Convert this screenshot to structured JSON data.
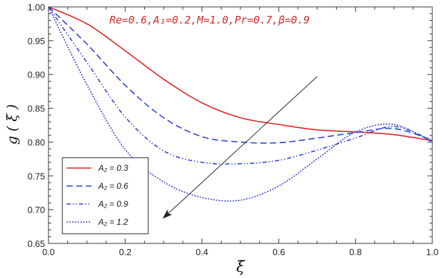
{
  "chart_data": {
    "type": "line",
    "xlabel": "ξ",
    "ylabel": "g ( ξ )",
    "xlim": [
      0,
      1
    ],
    "ylim": [
      0.65,
      1.0
    ],
    "x_ticks": [
      "0.0",
      "0.2",
      "0.4",
      "0.6",
      "0.8",
      "1.0"
    ],
    "y_ticks": [
      "0.65",
      "0.70",
      "0.75",
      "0.80",
      "0.85",
      "0.90",
      "0.95",
      "1.00"
    ],
    "annotation": "Re=0.6,A₁=0.2,M=1.0,Pr=0.7,β=0.9",
    "annotation_color": "#d42a2a",
    "legend_position": "bottom-left",
    "arrow": {
      "from": [
        0.7,
        0.897
      ],
      "to": [
        0.3,
        0.688
      ]
    },
    "series": [
      {
        "name": "A₂ = 0.3",
        "color": "#e02020",
        "dash": "solid",
        "x": [
          0,
          0.1,
          0.2,
          0.3,
          0.4,
          0.5,
          0.6,
          0.7,
          0.8,
          0.9,
          1.0
        ],
        "y": [
          1.0,
          0.975,
          0.935,
          0.893,
          0.858,
          0.836,
          0.826,
          0.818,
          0.815,
          0.811,
          0.802
        ]
      },
      {
        "name": "A₂ = 0.6",
        "color": "#2b3fd6",
        "dash": "dashed",
        "x": [
          0,
          0.1,
          0.2,
          0.3,
          0.4,
          0.5,
          0.6,
          0.7,
          0.8,
          0.9,
          1.0
        ],
        "y": [
          1.0,
          0.945,
          0.884,
          0.836,
          0.808,
          0.8,
          0.799,
          0.806,
          0.814,
          0.82,
          0.803
        ]
      },
      {
        "name": "A₂ = 0.9",
        "color": "#2b3fd6",
        "dash": "dashdot",
        "x": [
          0,
          0.1,
          0.2,
          0.3,
          0.4,
          0.5,
          0.6,
          0.7,
          0.8,
          0.9,
          1.0
        ],
        "y": [
          1.0,
          0.918,
          0.837,
          0.787,
          0.77,
          0.768,
          0.773,
          0.788,
          0.806,
          0.823,
          0.802
        ]
      },
      {
        "name": "A₂ = 1.2",
        "color": "#2b3fd6",
        "dash": "dotted",
        "x": [
          0,
          0.1,
          0.2,
          0.3,
          0.4,
          0.5,
          0.6,
          0.7,
          0.8,
          0.9,
          1.0
        ],
        "y": [
          1.0,
          0.885,
          0.789,
          0.741,
          0.718,
          0.714,
          0.735,
          0.775,
          0.815,
          0.826,
          0.8
        ]
      }
    ]
  }
}
